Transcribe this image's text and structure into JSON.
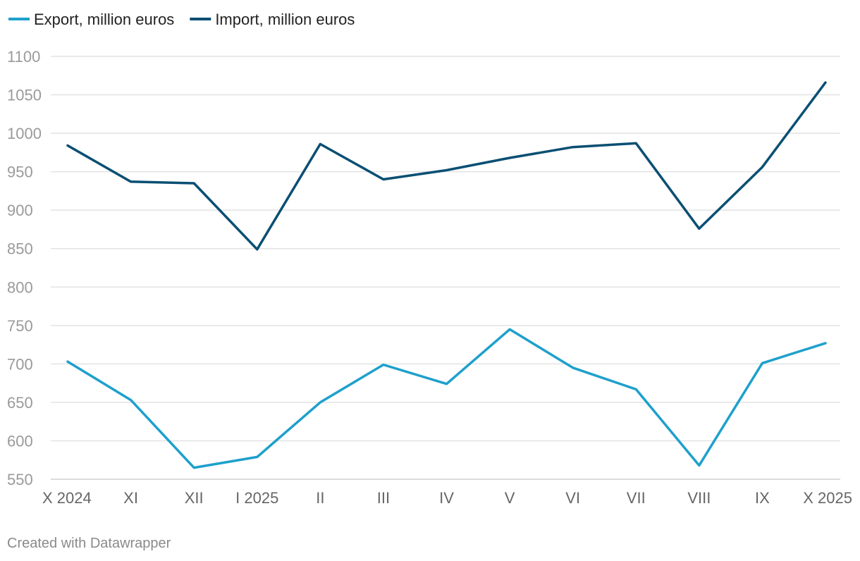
{
  "chart_data": {
    "type": "line",
    "title": "",
    "xlabel": "",
    "ylabel": "",
    "categories": [
      "X 2024",
      "XI",
      "XII",
      "I 2025",
      "II",
      "III",
      "IV",
      "V",
      "VI",
      "VII",
      "VIII",
      "IX",
      "X 2025"
    ],
    "ylim": [
      550,
      1100
    ],
    "yticks": [
      550,
      600,
      650,
      700,
      750,
      800,
      850,
      900,
      950,
      1000,
      1050,
      1100
    ],
    "grid": true,
    "legend_position": "top-left",
    "series": [
      {
        "name": "Export, million euros",
        "color": "#1ea0cc",
        "values": [
          703,
          653,
          565,
          579,
          650,
          699,
          674,
          745,
          695,
          667,
          568,
          701,
          727
        ]
      },
      {
        "name": "Import, million euros",
        "color": "#0a4f73",
        "values": [
          984,
          937,
          935,
          849,
          986,
          940,
          952,
          968,
          982,
          987,
          876,
          956,
          1066
        ]
      }
    ]
  },
  "footer": {
    "credit": "Created with Datawrapper"
  }
}
